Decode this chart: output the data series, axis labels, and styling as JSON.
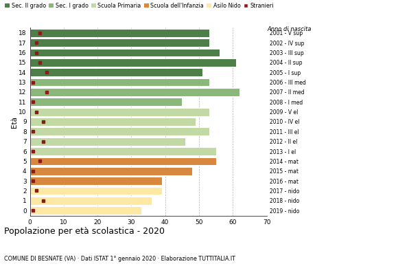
{
  "ages": [
    0,
    1,
    2,
    3,
    4,
    5,
    6,
    7,
    8,
    9,
    10,
    11,
    12,
    13,
    14,
    15,
    16,
    17,
    18
  ],
  "values": [
    33,
    36,
    39,
    39,
    48,
    55,
    55,
    46,
    53,
    49,
    53,
    45,
    62,
    53,
    51,
    61,
    56,
    53,
    53
  ],
  "stranieri": [
    1,
    4,
    2,
    1,
    1,
    3,
    1,
    4,
    1,
    4,
    2,
    1,
    5,
    1,
    5,
    3,
    2,
    2,
    3
  ],
  "category_ages": {
    "Asilo Nido": [
      0,
      1,
      2
    ],
    "Scuola dell'Infanzia": [
      3,
      4,
      5
    ],
    "Scuola Primaria": [
      6,
      7,
      8,
      9,
      10
    ],
    "Sec. I grado": [
      11,
      12,
      13
    ],
    "Sec. II grado": [
      14,
      15,
      16,
      17,
      18
    ]
  },
  "colors": {
    "Asilo Nido": "#fde9a3",
    "Scuola dell'Infanzia": "#d8883e",
    "Scuola Primaria": "#c3d9a5",
    "Sec. I grado": "#8ab87a",
    "Sec. II grado": "#4e7f49"
  },
  "stranieri_color": "#8b1a1a",
  "right_labels": [
    "2019 - nido",
    "2018 - nido",
    "2017 - nido",
    "2016 - mat",
    "2015 - mat",
    "2014 - mat",
    "2013 - I el",
    "2012 - II el",
    "2011 - III el",
    "2010 - IV el",
    "2009 - V el",
    "2008 - I med",
    "2007 - II med",
    "2006 - III med",
    "2005 - I sup",
    "2004 - II sup",
    "2003 - III sup",
    "2002 - IV sup",
    "2001 - V sup"
  ],
  "ylabel": "Età",
  "title": "Popolazione per età scolastica - 2020",
  "subtitle": "COMUNE DI BESNATE (VA) · Dati ISTAT 1° gennaio 2020 · Elaborazione TUTTITALIA.IT",
  "xlim": [
    0,
    70
  ],
  "xticks": [
    0,
    10,
    20,
    30,
    40,
    50,
    60,
    70
  ],
  "legend_order": [
    "Sec. II grado",
    "Sec. I grado",
    "Scuola Primaria",
    "Scuola dell'Infanzia",
    "Asilo Nido"
  ],
  "legend_anno_label": "Anno di nascita",
  "bar_height": 0.82
}
